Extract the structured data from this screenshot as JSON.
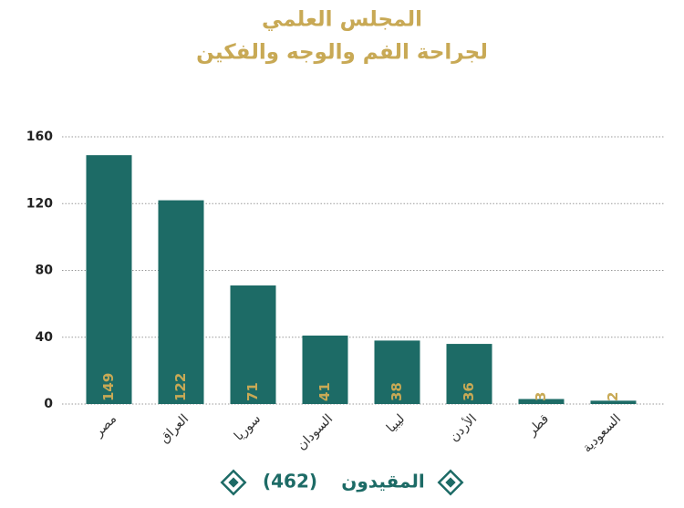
{
  "chart_data": {
    "type": "bar",
    "title": "المجلس العلمي",
    "subtitle": "لجراحة الفم والوجه والفكين",
    "categories": [
      "مصر",
      "العراق",
      "سوريا",
      "السودان",
      "ليبيا",
      "الأردن",
      "قطر",
      "السعودية"
    ],
    "series": [
      {
        "name": "المقيدون",
        "color": "#1d6b66",
        "values": [
          149,
          122,
          71,
          41,
          38,
          36,
          3,
          2
        ]
      }
    ],
    "legend_note": "(462)",
    "value_label_color": "#c8a955",
    "ylim": [
      0,
      160
    ],
    "yticks": [
      0,
      40,
      80,
      120,
      160
    ],
    "grid": true
  }
}
